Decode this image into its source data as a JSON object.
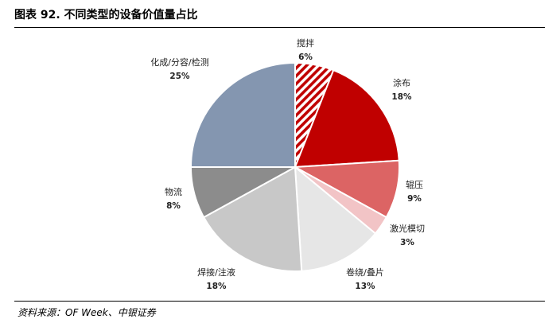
{
  "title": "图表 92. 不同类型的设备价值量占比",
  "source": "资料来源：OF Week、中银证券",
  "chart_data": {
    "type": "pie",
    "title": "",
    "slices": [
      {
        "name": "搅拌",
        "value": 6,
        "label": "6%",
        "color": "#c0000c",
        "pattern": "hatch"
      },
      {
        "name": "涂布",
        "value": 18,
        "label": "18%",
        "color": "#c00000"
      },
      {
        "name": "辊压",
        "value": 9,
        "label": "9%",
        "color": "#dc6464"
      },
      {
        "name": "激光模切",
        "value": 3,
        "label": "3%",
        "color": "#f2c4c6"
      },
      {
        "name": "卷绕/叠片",
        "value": 13,
        "label": "13%",
        "color": "#e6e6e6"
      },
      {
        "name": "焊接/注液",
        "value": 18,
        "label": "18%",
        "color": "#c8c8c8"
      },
      {
        "name": "物流",
        "value": 8,
        "label": "8%",
        "color": "#8c8c8c"
      },
      {
        "name": "化成/分容/检测",
        "value": 25,
        "label": "25%",
        "color": "#8496b0"
      }
    ]
  }
}
